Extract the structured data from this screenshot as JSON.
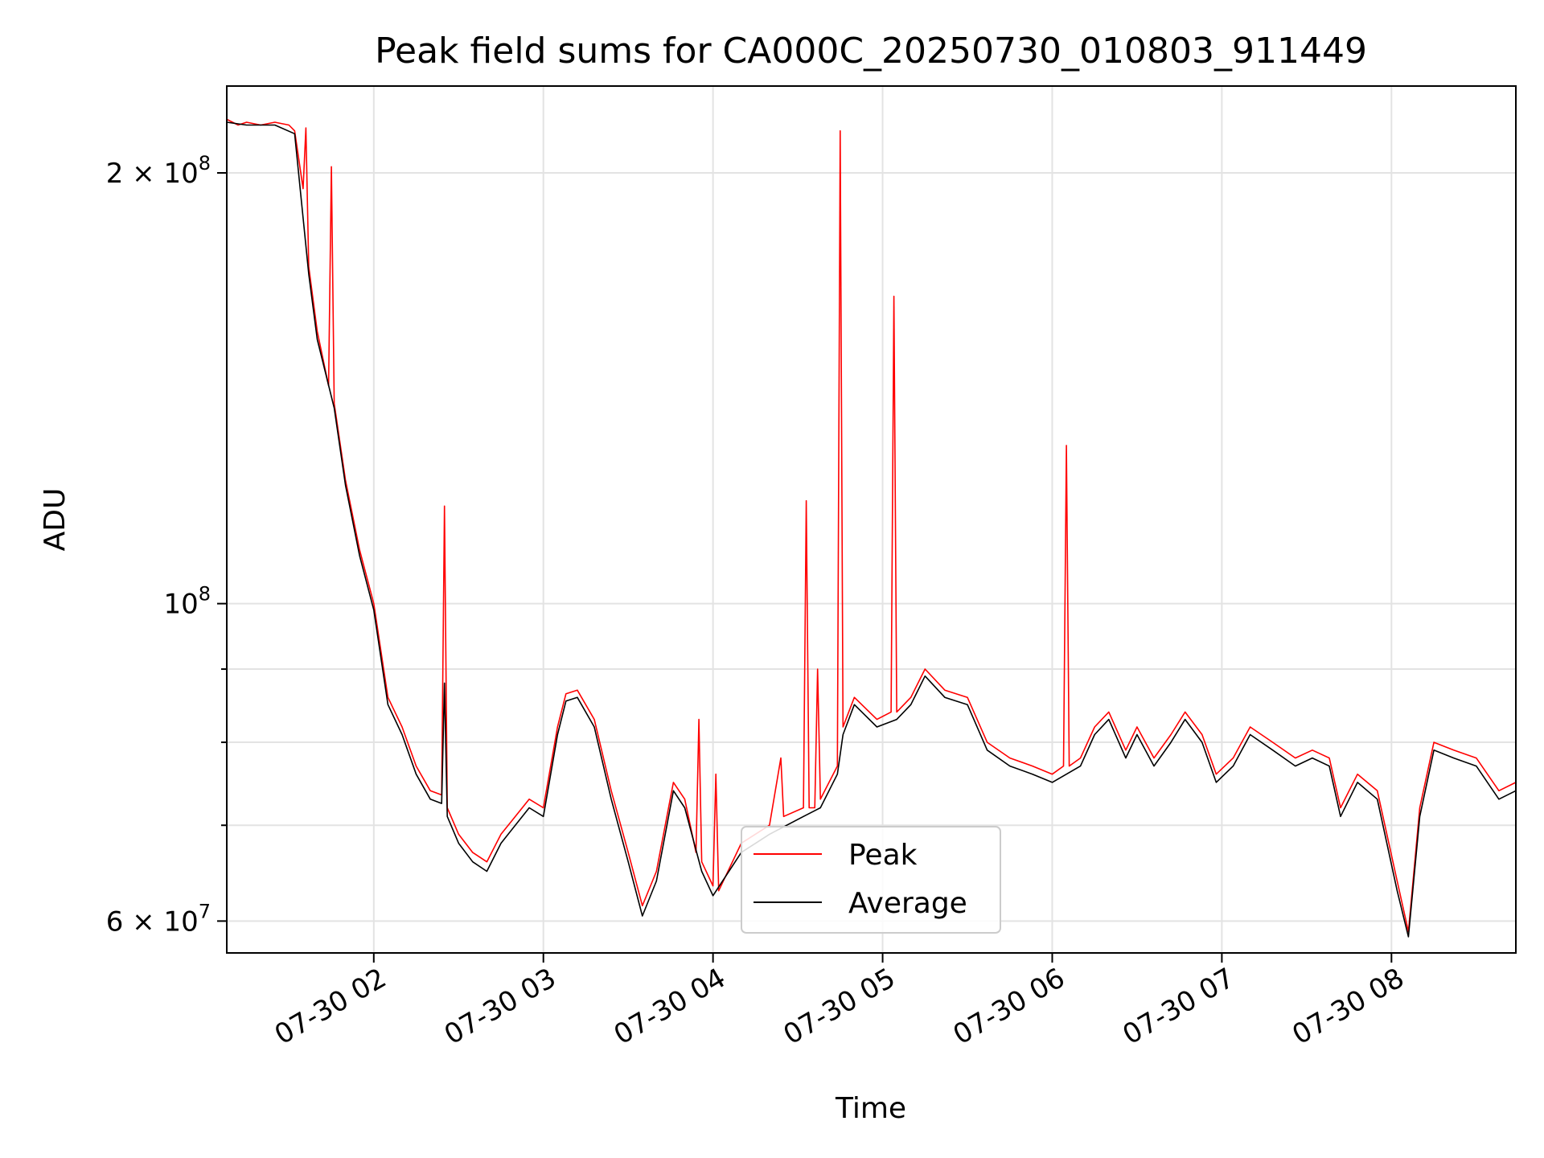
{
  "chart_data": {
    "type": "line",
    "title": "Peak field sums for CA000C_20250730_010803_911449",
    "xlabel": "Time",
    "ylabel": "ADU",
    "yscale": "log",
    "xlim": [
      "2025-07-30T01:08",
      "2025-07-30T08:44"
    ],
    "ylim": [
      57000000.0,
      230000000.0
    ],
    "grid": true,
    "legend": "lower-center",
    "x_ticks": [
      {
        "at": "2025-07-30T02:00",
        "label": "07-30 02"
      },
      {
        "at": "2025-07-30T03:00",
        "label": "07-30 03"
      },
      {
        "at": "2025-07-30T04:00",
        "label": "07-30 04"
      },
      {
        "at": "2025-07-30T05:00",
        "label": "07-30 05"
      },
      {
        "at": "2025-07-30T06:00",
        "label": "07-30 06"
      },
      {
        "at": "2025-07-30T07:00",
        "label": "07-30 07"
      },
      {
        "at": "2025-07-30T08:00",
        "label": "07-30 08"
      }
    ],
    "y_ticks": [
      {
        "value": 60000000,
        "base": "6 × 10",
        "exp": "7"
      },
      {
        "value": 100000000,
        "base": "10",
        "exp": "8"
      },
      {
        "value": 200000000,
        "base": "2 × 10",
        "exp": "8"
      }
    ],
    "y_minor_ticks": [
      70000000,
      80000000,
      90000000
    ],
    "series": [
      {
        "name": "Peak",
        "color": "#ff0000",
        "points": [
          [
            "2025-07-30T01:08",
            218000000.0
          ],
          [
            "2025-07-30T01:12",
            216000000.0
          ],
          [
            "2025-07-30T01:15",
            217000000.0
          ],
          [
            "2025-07-30T01:20",
            216000000.0
          ],
          [
            "2025-07-30T01:25",
            217000000.0
          ],
          [
            "2025-07-30T01:30",
            216000000.0
          ],
          [
            "2025-07-30T01:32",
            214000000.0
          ],
          [
            "2025-07-30T01:35",
            195000000.0
          ],
          [
            "2025-07-30T01:36",
            215000000.0
          ],
          [
            "2025-07-30T01:37",
            172000000.0
          ],
          [
            "2025-07-30T01:40",
            155000000.0
          ],
          [
            "2025-07-30T01:44",
            142000000.0
          ],
          [
            "2025-07-30T01:45",
            202000000.0
          ],
          [
            "2025-07-30T01:46",
            138000000.0
          ],
          [
            "2025-07-30T01:50",
            122000000.0
          ],
          [
            "2025-07-30T01:55",
            109000000.0
          ],
          [
            "2025-07-30T02:00",
            100000000.0
          ],
          [
            "2025-07-30T02:05",
            86000000.0
          ],
          [
            "2025-07-30T02:10",
            82000000.0
          ],
          [
            "2025-07-30T02:15",
            77000000.0
          ],
          [
            "2025-07-30T02:20",
            74000000.0
          ],
          [
            "2025-07-30T02:24",
            73500000.0
          ],
          [
            "2025-07-30T02:25",
            117000000.0
          ],
          [
            "2025-07-30T02:26",
            72000000.0
          ],
          [
            "2025-07-30T02:30",
            69000000.0
          ],
          [
            "2025-07-30T02:35",
            67000000.0
          ],
          [
            "2025-07-30T02:40",
            66000000.0
          ],
          [
            "2025-07-30T02:45",
            69000000.0
          ],
          [
            "2025-07-30T02:55",
            73000000.0
          ],
          [
            "2025-07-30T03:00",
            72000000.0
          ],
          [
            "2025-07-30T03:05",
            82000000.0
          ],
          [
            "2025-07-30T03:08",
            86500000.0
          ],
          [
            "2025-07-30T03:12",
            87000000.0
          ],
          [
            "2025-07-30T03:18",
            83000000.0
          ],
          [
            "2025-07-30T03:24",
            74000000.0
          ],
          [
            "2025-07-30T03:30",
            67000000.0
          ],
          [
            "2025-07-30T03:35",
            61500000.0
          ],
          [
            "2025-07-30T03:40",
            65000000.0
          ],
          [
            "2025-07-30T03:46",
            75000000.0
          ],
          [
            "2025-07-30T03:50",
            73000000.0
          ],
          [
            "2025-07-30T03:54",
            67000000.0
          ],
          [
            "2025-07-30T03:55",
            83000000.0
          ],
          [
            "2025-07-30T03:56",
            66000000.0
          ],
          [
            "2025-07-30T04:00",
            63500000.0
          ],
          [
            "2025-07-30T04:01",
            76000000.0
          ],
          [
            "2025-07-30T04:02",
            63000000.0
          ],
          [
            "2025-07-30T04:10",
            68000000.0
          ],
          [
            "2025-07-30T04:20",
            70000000.0
          ],
          [
            "2025-07-30T04:24",
            78000000.0
          ],
          [
            "2025-07-30T04:25",
            71000000.0
          ],
          [
            "2025-07-30T04:32",
            72000000.0
          ],
          [
            "2025-07-30T04:33",
            118000000.0
          ],
          [
            "2025-07-30T04:34",
            72000000.0
          ],
          [
            "2025-07-30T04:36",
            72000000.0
          ],
          [
            "2025-07-30T04:37",
            90000000.0
          ],
          [
            "2025-07-30T04:38",
            73000000.0
          ],
          [
            "2025-07-30T04:44",
            77000000.0
          ],
          [
            "2025-07-30T04:45",
            214000000.0
          ],
          [
            "2025-07-30T04:46",
            82000000.0
          ],
          [
            "2025-07-30T04:50",
            86000000.0
          ],
          [
            "2025-07-30T04:58",
            83000000.0
          ],
          [
            "2025-07-30T05:03",
            84000000.0
          ],
          [
            "2025-07-30T05:04",
            164000000.0
          ],
          [
            "2025-07-30T05:05",
            84000000.0
          ],
          [
            "2025-07-30T05:10",
            86000000.0
          ],
          [
            "2025-07-30T05:15",
            90000000.0
          ],
          [
            "2025-07-30T05:22",
            87000000.0
          ],
          [
            "2025-07-30T05:30",
            86000000.0
          ],
          [
            "2025-07-30T05:37",
            80000000.0
          ],
          [
            "2025-07-30T05:45",
            78000000.0
          ],
          [
            "2025-07-30T05:53",
            77000000.0
          ],
          [
            "2025-07-30T06:00",
            76000000.0
          ],
          [
            "2025-07-30T06:04",
            77000000.0
          ],
          [
            "2025-07-30T06:05",
            129000000.0
          ],
          [
            "2025-07-30T06:06",
            77000000.0
          ],
          [
            "2025-07-30T06:10",
            78000000.0
          ],
          [
            "2025-07-30T06:15",
            82000000.0
          ],
          [
            "2025-07-30T06:20",
            84000000.0
          ],
          [
            "2025-07-30T06:26",
            79000000.0
          ],
          [
            "2025-07-30T06:30",
            82000000.0
          ],
          [
            "2025-07-30T06:36",
            78000000.0
          ],
          [
            "2025-07-30T06:42",
            81000000.0
          ],
          [
            "2025-07-30T06:47",
            84000000.0
          ],
          [
            "2025-07-30T06:53",
            81000000.0
          ],
          [
            "2025-07-30T06:58",
            76000000.0
          ],
          [
            "2025-07-30T07:04",
            78000000.0
          ],
          [
            "2025-07-30T07:10",
            82000000.0
          ],
          [
            "2025-07-30T07:18",
            80000000.0
          ],
          [
            "2025-07-30T07:26",
            78000000.0
          ],
          [
            "2025-07-30T07:32",
            79000000.0
          ],
          [
            "2025-07-30T07:38",
            78000000.0
          ],
          [
            "2025-07-30T07:42",
            72000000.0
          ],
          [
            "2025-07-30T07:48",
            76000000.0
          ],
          [
            "2025-07-30T07:55",
            74000000.0
          ],
          [
            "2025-07-30T08:02",
            64000000.0
          ],
          [
            "2025-07-30T08:06",
            59000000.0
          ],
          [
            "2025-07-30T08:10",
            72000000.0
          ],
          [
            "2025-07-30T08:15",
            80000000.0
          ],
          [
            "2025-07-30T08:22",
            79000000.0
          ],
          [
            "2025-07-30T08:30",
            78000000.0
          ],
          [
            "2025-07-30T08:38",
            74000000.0
          ],
          [
            "2025-07-30T08:44",
            75000000.0
          ]
        ]
      },
      {
        "name": "Average",
        "color": "#000000",
        "points": [
          [
            "2025-07-30T01:08",
            217000000.0
          ],
          [
            "2025-07-30T01:15",
            216000000.0
          ],
          [
            "2025-07-30T01:25",
            216000000.0
          ],
          [
            "2025-07-30T01:32",
            213000000.0
          ],
          [
            "2025-07-30T01:37",
            170000000.0
          ],
          [
            "2025-07-30T01:40",
            153000000.0
          ],
          [
            "2025-07-30T01:46",
            137000000.0
          ],
          [
            "2025-07-30T01:50",
            121000000.0
          ],
          [
            "2025-07-30T01:55",
            108000000.0
          ],
          [
            "2025-07-30T02:00",
            99000000.0
          ],
          [
            "2025-07-30T02:05",
            85000000.0
          ],
          [
            "2025-07-30T02:10",
            81000000.0
          ],
          [
            "2025-07-30T02:15",
            76000000.0
          ],
          [
            "2025-07-30T02:20",
            73000000.0
          ],
          [
            "2025-07-30T02:24",
            72500000.0
          ],
          [
            "2025-07-30T02:25",
            88000000.0
          ],
          [
            "2025-07-30T02:26",
            71000000.0
          ],
          [
            "2025-07-30T02:30",
            68000000.0
          ],
          [
            "2025-07-30T02:35",
            66000000.0
          ],
          [
            "2025-07-30T02:40",
            65000000.0
          ],
          [
            "2025-07-30T02:45",
            68000000.0
          ],
          [
            "2025-07-30T02:55",
            72000000.0
          ],
          [
            "2025-07-30T03:00",
            71000000.0
          ],
          [
            "2025-07-30T03:05",
            81000000.0
          ],
          [
            "2025-07-30T03:08",
            85500000.0
          ],
          [
            "2025-07-30T03:12",
            86000000.0
          ],
          [
            "2025-07-30T03:18",
            82000000.0
          ],
          [
            "2025-07-30T03:24",
            73000000.0
          ],
          [
            "2025-07-30T03:30",
            66000000.0
          ],
          [
            "2025-07-30T03:35",
            60500000.0
          ],
          [
            "2025-07-30T03:40",
            64000000.0
          ],
          [
            "2025-07-30T03:46",
            74000000.0
          ],
          [
            "2025-07-30T03:50",
            72000000.0
          ],
          [
            "2025-07-30T03:56",
            65000000.0
          ],
          [
            "2025-07-30T04:00",
            62500000.0
          ],
          [
            "2025-07-30T04:10",
            67000000.0
          ],
          [
            "2025-07-30T04:20",
            69000000.0
          ],
          [
            "2025-07-30T04:32",
            71000000.0
          ],
          [
            "2025-07-30T04:38",
            72000000.0
          ],
          [
            "2025-07-30T04:44",
            76000000.0
          ],
          [
            "2025-07-30T04:46",
            81000000.0
          ],
          [
            "2025-07-30T04:50",
            85000000.0
          ],
          [
            "2025-07-30T04:58",
            82000000.0
          ],
          [
            "2025-07-30T05:05",
            83000000.0
          ],
          [
            "2025-07-30T05:10",
            85000000.0
          ],
          [
            "2025-07-30T05:15",
            89000000.0
          ],
          [
            "2025-07-30T05:22",
            86000000.0
          ],
          [
            "2025-07-30T05:30",
            85000000.0
          ],
          [
            "2025-07-30T05:37",
            79000000.0
          ],
          [
            "2025-07-30T05:45",
            77000000.0
          ],
          [
            "2025-07-30T05:53",
            76000000.0
          ],
          [
            "2025-07-30T06:00",
            75000000.0
          ],
          [
            "2025-07-30T06:10",
            77000000.0
          ],
          [
            "2025-07-30T06:15",
            81000000.0
          ],
          [
            "2025-07-30T06:20",
            83000000.0
          ],
          [
            "2025-07-30T06:26",
            78000000.0
          ],
          [
            "2025-07-30T06:30",
            81000000.0
          ],
          [
            "2025-07-30T06:36",
            77000000.0
          ],
          [
            "2025-07-30T06:42",
            80000000.0
          ],
          [
            "2025-07-30T06:47",
            83000000.0
          ],
          [
            "2025-07-30T06:53",
            80000000.0
          ],
          [
            "2025-07-30T06:58",
            75000000.0
          ],
          [
            "2025-07-30T07:04",
            77000000.0
          ],
          [
            "2025-07-30T07:10",
            81000000.0
          ],
          [
            "2025-07-30T07:18",
            79000000.0
          ],
          [
            "2025-07-30T07:26",
            77000000.0
          ],
          [
            "2025-07-30T07:32",
            78000000.0
          ],
          [
            "2025-07-30T07:38",
            77000000.0
          ],
          [
            "2025-07-30T07:42",
            71000000.0
          ],
          [
            "2025-07-30T07:48",
            75000000.0
          ],
          [
            "2025-07-30T07:55",
            73000000.0
          ],
          [
            "2025-07-30T08:02",
            63000000.0
          ],
          [
            "2025-07-30T08:06",
            58500000.0
          ],
          [
            "2025-07-30T08:10",
            71000000.0
          ],
          [
            "2025-07-30T08:15",
            79000000.0
          ],
          [
            "2025-07-30T08:22",
            78000000.0
          ],
          [
            "2025-07-30T08:30",
            77000000.0
          ],
          [
            "2025-07-30T08:38",
            73000000.0
          ],
          [
            "2025-07-30T08:44",
            74000000.0
          ]
        ]
      }
    ]
  }
}
